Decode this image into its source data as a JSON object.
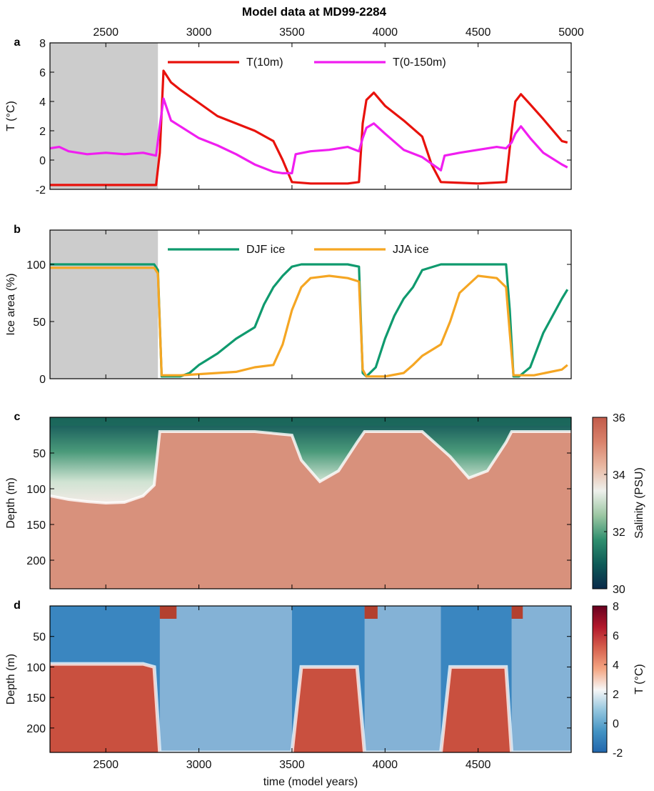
{
  "title": "Model data at MD99-2284",
  "xlabel": "time (model years)",
  "x_ticks": [
    2500,
    3000,
    3500,
    4000,
    4500,
    5000
  ],
  "x_ticks_bottom": [
    2500,
    3000,
    3500,
    4000,
    4500
  ],
  "colors": {
    "t10": "#e8120c",
    "t0150": "#f01ef0",
    "djf": "#0f9a6e",
    "jja": "#f5a623",
    "shade": "#cccccc"
  },
  "chart_data": [
    {
      "panel": "a",
      "type": "line",
      "ylabel": "T (°C)",
      "xlim": [
        2200,
        5000
      ],
      "ylim": [
        -2,
        8
      ],
      "y_ticks": [
        -2,
        0,
        2,
        4,
        6,
        8
      ],
      "shaded_x": [
        2200,
        2780
      ],
      "legend_position": "top",
      "series": [
        {
          "name": "T(10m)",
          "color": "#e8120c",
          "x": [
            2200,
            2770,
            2790,
            2810,
            2850,
            2900,
            3000,
            3100,
            3200,
            3300,
            3400,
            3450,
            3500,
            3600,
            3800,
            3860,
            3880,
            3900,
            3940,
            4000,
            4100,
            4200,
            4250,
            4300,
            4500,
            4650,
            4680,
            4700,
            4730,
            4780,
            4850,
            4950,
            4980
          ],
          "y": [
            -1.7,
            -1.7,
            0.5,
            6.1,
            5.3,
            4.8,
            3.9,
            3.0,
            2.5,
            2.0,
            1.3,
            0.0,
            -1.5,
            -1.6,
            -1.6,
            -1.5,
            2.5,
            4.1,
            4.6,
            3.7,
            2.7,
            1.6,
            -0.3,
            -1.5,
            -1.6,
            -1.5,
            2.0,
            4.0,
            4.5,
            3.8,
            2.8,
            1.3,
            1.2
          ]
        },
        {
          "name": "T(0-150m)",
          "color": "#f01ef0",
          "x": [
            2200,
            2250,
            2300,
            2400,
            2500,
            2600,
            2700,
            2770,
            2790,
            2810,
            2850,
            2900,
            3000,
            3100,
            3200,
            3300,
            3400,
            3450,
            3500,
            3520,
            3600,
            3700,
            3800,
            3860,
            3880,
            3900,
            3940,
            4000,
            4100,
            4200,
            4300,
            4320,
            4400,
            4500,
            4600,
            4650,
            4680,
            4700,
            4730,
            4780,
            4850,
            4950,
            4980
          ],
          "y": [
            0.8,
            0.9,
            0.6,
            0.4,
            0.5,
            0.4,
            0.5,
            0.3,
            2.3,
            4.2,
            2.7,
            2.3,
            1.5,
            1.0,
            0.4,
            -0.3,
            -0.8,
            -0.9,
            -0.9,
            0.4,
            0.6,
            0.7,
            0.9,
            0.6,
            1.5,
            2.2,
            2.5,
            1.8,
            0.7,
            0.2,
            -0.7,
            0.3,
            0.5,
            0.7,
            0.9,
            0.8,
            1.2,
            1.8,
            2.3,
            1.5,
            0.5,
            -0.3,
            -0.5
          ]
        }
      ]
    },
    {
      "panel": "b",
      "type": "line",
      "ylabel": "Ice area (%)",
      "xlim": [
        2200,
        5000
      ],
      "ylim": [
        0,
        130
      ],
      "y_ticks": [
        0,
        50,
        100
      ],
      "shaded_x": [
        2200,
        2780
      ],
      "legend_position": "top",
      "series": [
        {
          "name": "DJF ice",
          "color": "#0f9a6e",
          "x": [
            2200,
            2760,
            2780,
            2800,
            2850,
            2900,
            2950,
            3000,
            3100,
            3200,
            3300,
            3350,
            3400,
            3450,
            3500,
            3550,
            3600,
            3800,
            3860,
            3880,
            3900,
            3950,
            4000,
            4050,
            4100,
            4150,
            4200,
            4300,
            4650,
            4670,
            4690,
            4720,
            4780,
            4850,
            4950,
            4980
          ],
          "y": [
            100,
            100,
            95,
            2,
            2,
            2,
            5,
            12,
            22,
            35,
            45,
            65,
            80,
            90,
            98,
            100,
            100,
            100,
            98,
            5,
            2,
            10,
            35,
            55,
            70,
            80,
            95,
            100,
            100,
            60,
            2,
            2,
            10,
            40,
            70,
            78
          ]
        },
        {
          "name": "JJA ice",
          "color": "#f5a623",
          "x": [
            2200,
            2760,
            2780,
            2800,
            2900,
            3000,
            3100,
            3200,
            3300,
            3400,
            3450,
            3500,
            3550,
            3600,
            3700,
            3800,
            3860,
            3880,
            3900,
            4000,
            4100,
            4150,
            4200,
            4250,
            4300,
            4350,
            4400,
            4500,
            4600,
            4650,
            4670,
            4690,
            4800,
            4950,
            4980
          ],
          "y": [
            97,
            97,
            92,
            3,
            3,
            4,
            5,
            6,
            10,
            12,
            30,
            60,
            80,
            88,
            90,
            88,
            85,
            8,
            2,
            2,
            5,
            12,
            20,
            25,
            30,
            50,
            75,
            90,
            88,
            80,
            40,
            3,
            3,
            8,
            12
          ]
        }
      ]
    },
    {
      "panel": "c",
      "type": "heatmap",
      "ylabel": "Depth (m)",
      "xlim": [
        2200,
        5000
      ],
      "ylim": [
        0,
        240
      ],
      "y_ticks": [
        50,
        100,
        150,
        200
      ],
      "colorbar_label": "Salinity (PSU)",
      "colorbar_range": [
        30,
        36
      ],
      "colorbar_ticks": [
        30,
        32,
        34,
        36
      ],
      "colormap": [
        "#0a2a4a",
        "#0e5a57",
        "#2f8f6e",
        "#9cc7a3",
        "#eef0ec",
        "#e9b8a2",
        "#d9826b",
        "#c25b4a"
      ],
      "fresh_layer_depth": {
        "x": [
          2200,
          2300,
          2400,
          2500,
          2600,
          2700,
          2760,
          2790,
          3300,
          3500,
          3550,
          3650,
          3750,
          3850,
          3890,
          4200,
          4350,
          4450,
          4550,
          4650,
          4680,
          5000
        ],
        "depth": [
          110,
          115,
          118,
          120,
          119,
          110,
          95,
          20,
          20,
          25,
          60,
          90,
          75,
          35,
          20,
          20,
          55,
          85,
          75,
          35,
          20,
          20
        ]
      }
    },
    {
      "panel": "d",
      "type": "heatmap",
      "ylabel": "Depth (m)",
      "xlim": [
        2200,
        5000
      ],
      "ylim": [
        0,
        240
      ],
      "y_ticks": [
        50,
        100,
        150,
        200
      ],
      "colorbar_label": "T (°C)",
      "colorbar_range": [
        -2,
        8
      ],
      "colorbar_ticks": [
        -2,
        0,
        2,
        4,
        6,
        8
      ],
      "colormap": [
        "#2166ac",
        "#4393c3",
        "#92c5de",
        "#f7f7f7",
        "#f4a582",
        "#d6604d",
        "#b2182b",
        "#67001f"
      ],
      "warm_layer_top": {
        "x": [
          2200,
          2700,
          2760,
          2790,
          3500,
          3550,
          3850,
          3890,
          4300,
          4350,
          4650,
          4680,
          5000
        ],
        "depth": [
          95,
          95,
          100,
          240,
          240,
          100,
          100,
          240,
          240,
          100,
          100,
          240,
          240
        ]
      }
    }
  ]
}
